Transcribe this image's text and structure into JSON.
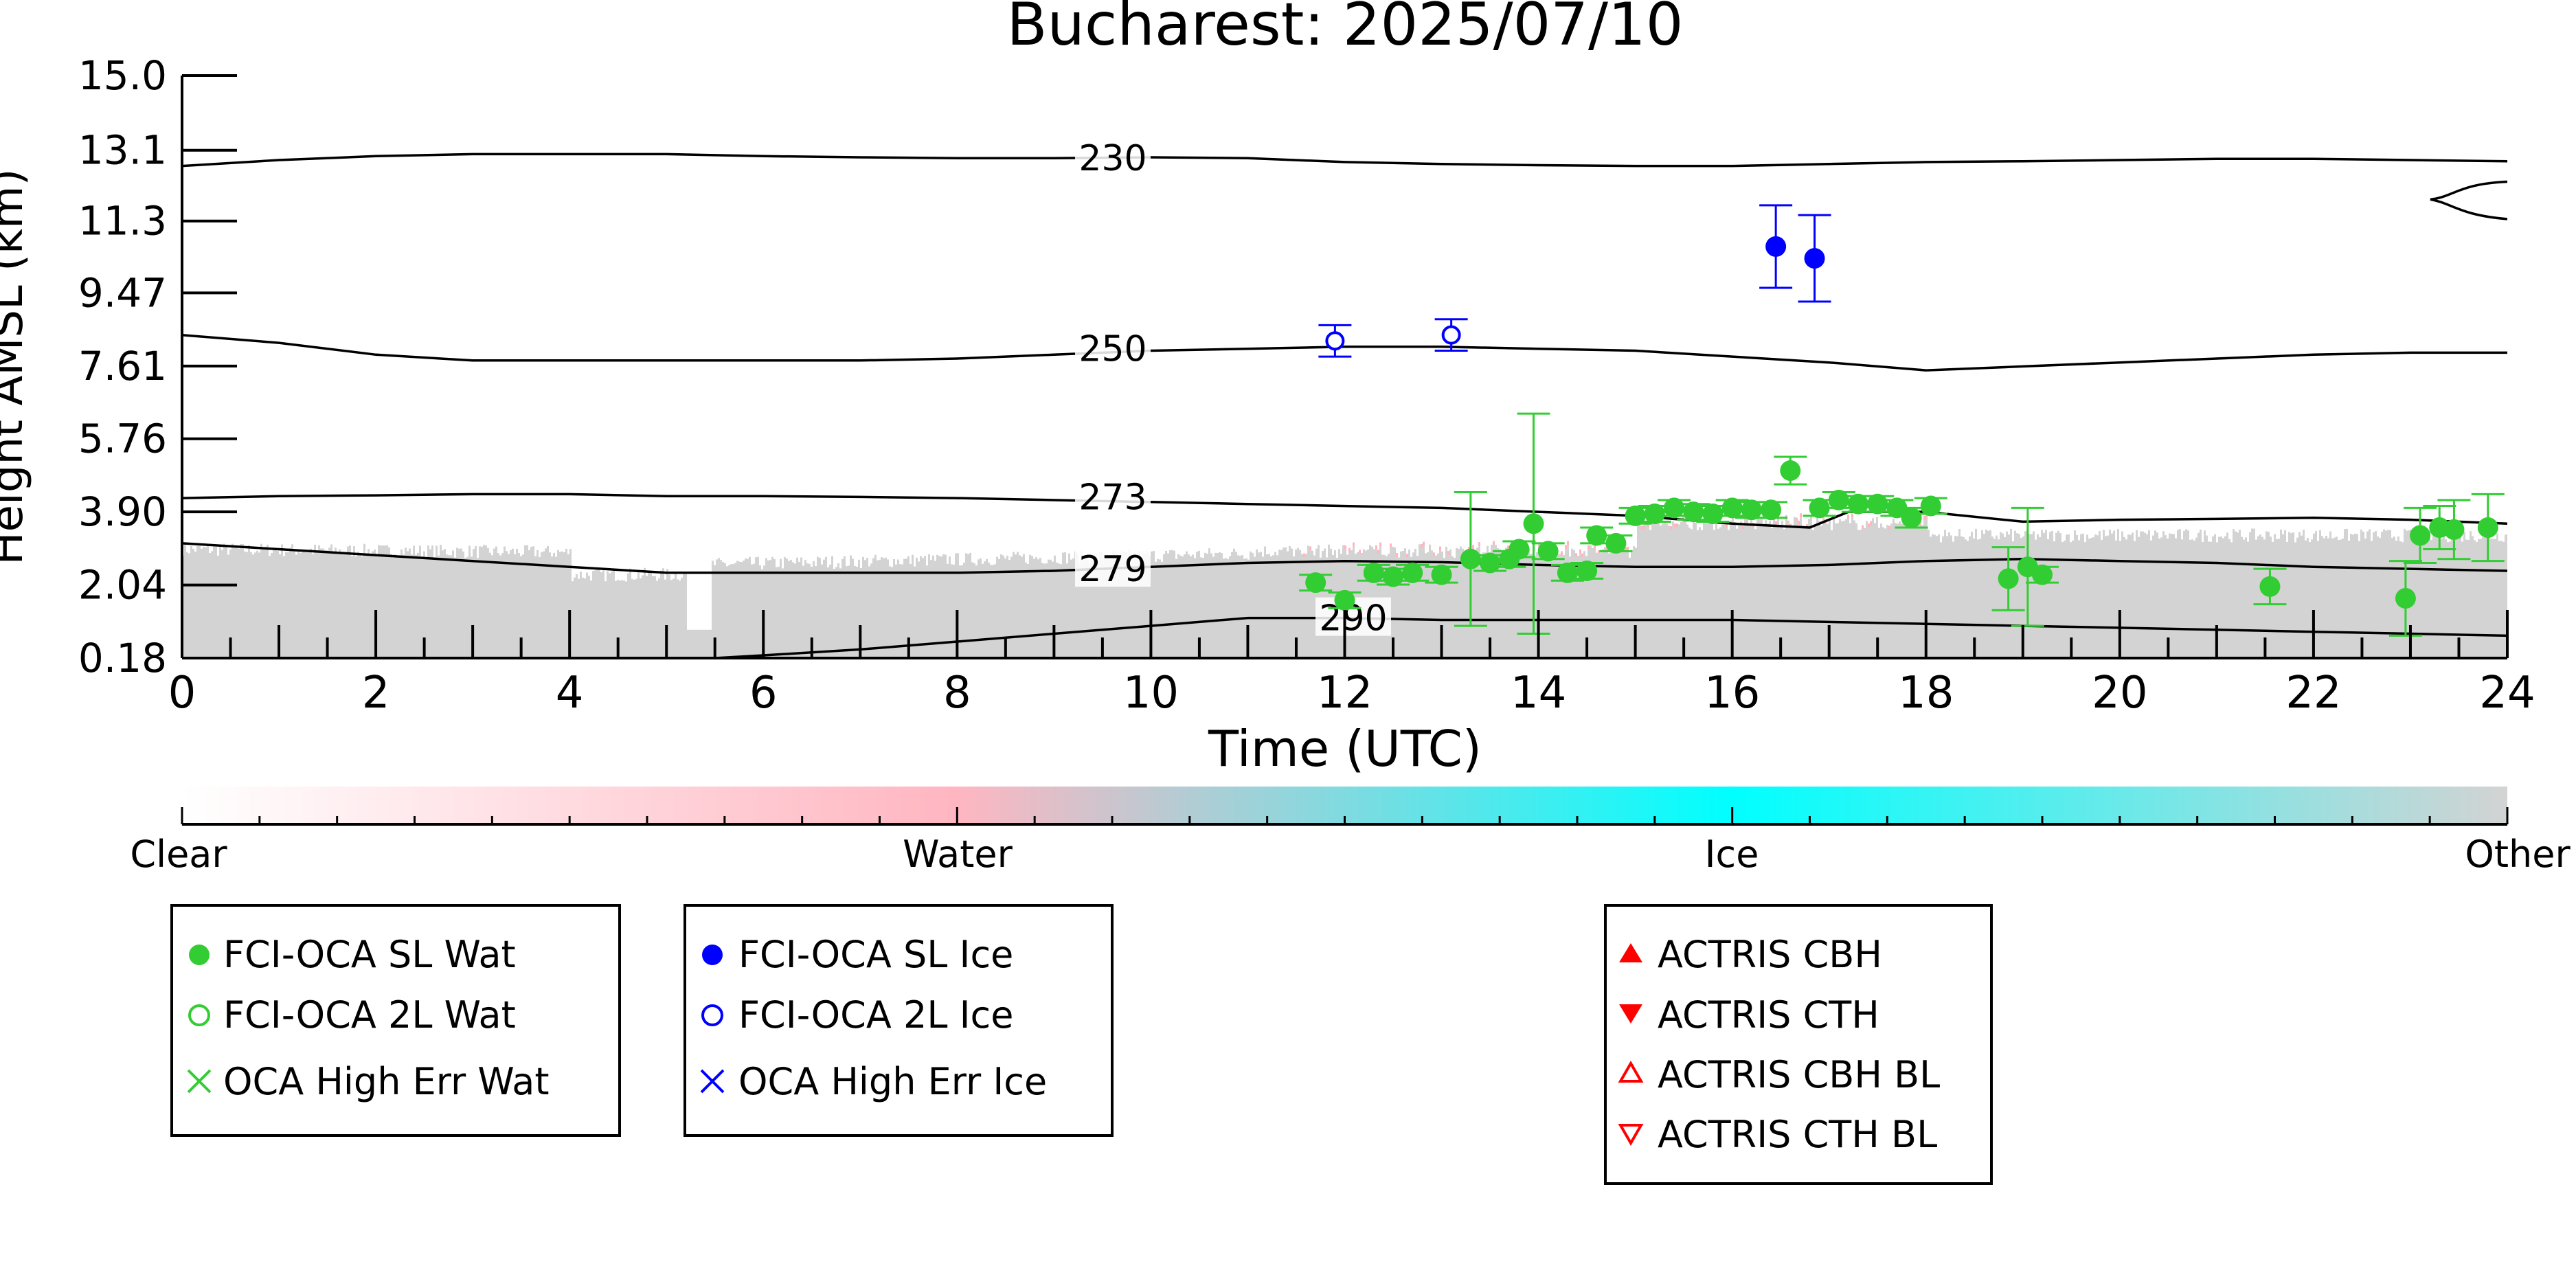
{
  "chart_data": {
    "type": "scatter",
    "title": "Bucharest: 2025/07/10",
    "xlabel": "Time (UTC)",
    "ylabel": "Height AMSL (km)",
    "xlim": [
      0,
      24
    ],
    "ylim": [
      0.18,
      15.0
    ],
    "x_ticks": [
      "0",
      "2",
      "4",
      "6",
      "8",
      "10",
      "12",
      "14",
      "16",
      "18",
      "20",
      "22",
      "24"
    ],
    "y_ticks": [
      {
        "value": 0.18,
        "label": "0.18"
      },
      {
        "value": 2.04,
        "label": "2.04"
      },
      {
        "value": 3.9,
        "label": "3.90"
      },
      {
        "value": 5.76,
        "label": "5.76"
      },
      {
        "value": 7.61,
        "label": "7.61"
      },
      {
        "value": 9.47,
        "label": "9.47"
      },
      {
        "value": 11.3,
        "label": "11.3"
      },
      {
        "value": 13.1,
        "label": "13.1"
      },
      {
        "value": 15.0,
        "label": "15.0"
      }
    ],
    "grid": false,
    "colorbar": {
      "labels": [
        "Clear",
        "Water",
        "Ice",
        "Other"
      ],
      "colors": [
        "#ffffff",
        "#ffb6c1",
        "#00ffff",
        "#d3d3d3"
      ]
    },
    "contour_labels": [
      "230",
      "250",
      "273",
      "279",
      "290"
    ],
    "isotherms": [
      {
        "label": "230",
        "x": [
          0,
          1,
          2,
          3,
          4,
          5,
          6,
          7,
          8,
          9,
          10,
          11,
          12,
          13,
          14,
          15,
          16,
          17,
          18,
          19,
          20,
          21,
          22,
          23,
          24
        ],
        "y": [
          12.7,
          12.85,
          12.95,
          13.0,
          13.0,
          13.0,
          12.95,
          12.92,
          12.9,
          12.9,
          12.92,
          12.9,
          12.8,
          12.75,
          12.72,
          12.7,
          12.7,
          12.75,
          12.8,
          12.82,
          12.85,
          12.88,
          12.88,
          12.85,
          12.82
        ]
      },
      {
        "label": "250",
        "x": [
          0,
          1,
          2,
          3,
          4,
          5,
          6,
          7,
          8,
          9,
          10,
          11,
          12,
          13,
          14,
          15,
          16,
          17,
          18,
          19,
          20,
          21,
          22,
          23,
          24
        ],
        "y": [
          8.4,
          8.2,
          7.9,
          7.75,
          7.75,
          7.75,
          7.75,
          7.75,
          7.8,
          7.9,
          8.0,
          8.05,
          8.1,
          8.1,
          8.05,
          8.0,
          7.85,
          7.7,
          7.5,
          7.6,
          7.7,
          7.8,
          7.9,
          7.95,
          7.95
        ]
      },
      {
        "label": "273",
        "x": [
          0,
          1,
          2,
          3,
          4,
          5,
          6,
          7,
          8,
          9,
          10,
          11,
          12,
          13,
          14,
          15,
          16,
          16.8,
          17.2,
          18,
          19,
          20,
          21,
          22,
          23,
          24
        ],
        "y": [
          4.25,
          4.3,
          4.32,
          4.35,
          4.35,
          4.3,
          4.3,
          4.28,
          4.25,
          4.2,
          4.15,
          4.1,
          4.05,
          4.0,
          3.9,
          3.8,
          3.6,
          3.5,
          3.9,
          3.9,
          3.65,
          3.7,
          3.72,
          3.75,
          3.7,
          3.6
        ]
      },
      {
        "label": "279",
        "x": [
          0,
          1,
          2,
          3,
          4,
          5,
          6,
          7,
          8,
          9,
          10,
          11,
          12,
          13,
          14,
          15,
          16,
          17,
          18,
          19,
          20,
          21,
          22,
          23,
          24
        ],
        "y": [
          3.1,
          2.95,
          2.8,
          2.65,
          2.5,
          2.35,
          2.35,
          2.35,
          2.35,
          2.4,
          2.5,
          2.6,
          2.65,
          2.62,
          2.55,
          2.5,
          2.5,
          2.55,
          2.65,
          2.7,
          2.65,
          2.6,
          2.5,
          2.45,
          2.4
        ]
      },
      {
        "label": "290",
        "x": [
          5.5,
          6,
          7,
          8,
          9,
          10,
          11,
          12,
          13,
          14,
          15,
          16,
          17,
          18,
          19,
          20,
          21,
          22,
          23,
          24
        ],
        "y": [
          0.18,
          0.25,
          0.4,
          0.6,
          0.8,
          1.0,
          1.2,
          1.2,
          1.15,
          1.15,
          1.15,
          1.15,
          1.1,
          1.05,
          1.0,
          0.95,
          0.9,
          0.85,
          0.8,
          0.75
        ]
      }
    ],
    "series": [
      {
        "name": "FCI-OCA SL Wat",
        "color": "#32cd32",
        "marker": "filled-circle",
        "points": [
          {
            "x": 11.7,
            "y": 2.1,
            "err": 0.2
          },
          {
            "x": 12.0,
            "y": 1.65,
            "err": 0.2
          },
          {
            "x": 12.3,
            "y": 2.35,
            "err": 0.2
          },
          {
            "x": 12.5,
            "y": 2.25,
            "err": 0.2
          },
          {
            "x": 12.7,
            "y": 2.35,
            "err": 0.2
          },
          {
            "x": 13.0,
            "y": 2.3,
            "err": 0.2
          },
          {
            "x": 13.3,
            "y": 2.7,
            "err": 1.7
          },
          {
            "x": 13.5,
            "y": 2.6,
            "err": 0.2
          },
          {
            "x": 13.7,
            "y": 2.7,
            "err": 0.2
          },
          {
            "x": 13.8,
            "y": 2.95,
            "err": 0.2
          },
          {
            "x": 13.95,
            "y": 3.6,
            "err": 2.8
          },
          {
            "x": 14.1,
            "y": 2.9,
            "err": 0.2
          },
          {
            "x": 14.3,
            "y": 2.35,
            "err": 0.2
          },
          {
            "x": 14.5,
            "y": 2.4,
            "err": 0.2
          },
          {
            "x": 14.6,
            "y": 3.3,
            "err": 0.2
          },
          {
            "x": 14.8,
            "y": 3.1,
            "err": 0.2
          },
          {
            "x": 15.0,
            "y": 3.8,
            "err": 0.2
          },
          {
            "x": 15.2,
            "y": 3.85,
            "err": 0.2
          },
          {
            "x": 15.4,
            "y": 4.0,
            "err": 0.2
          },
          {
            "x": 15.6,
            "y": 3.9,
            "err": 0.2
          },
          {
            "x": 15.8,
            "y": 3.85,
            "err": 0.2
          },
          {
            "x": 16.0,
            "y": 4.0,
            "err": 0.2
          },
          {
            "x": 16.2,
            "y": 3.95,
            "err": 0.2
          },
          {
            "x": 16.4,
            "y": 3.95,
            "err": 0.2
          },
          {
            "x": 16.6,
            "y": 4.95,
            "err": 0.35
          },
          {
            "x": 16.9,
            "y": 4.0,
            "err": 0.2
          },
          {
            "x": 17.1,
            "y": 4.2,
            "err": 0.2
          },
          {
            "x": 17.3,
            "y": 4.1,
            "err": 0.2
          },
          {
            "x": 17.5,
            "y": 4.1,
            "err": 0.2
          },
          {
            "x": 17.7,
            "y": 4.0,
            "err": 0.2
          },
          {
            "x": 17.85,
            "y": 3.75,
            "err": 0.25
          },
          {
            "x": 18.05,
            "y": 4.05,
            "err": 0.2
          },
          {
            "x": 18.85,
            "y": 2.2,
            "err": 0.8
          },
          {
            "x": 19.05,
            "y": 2.5,
            "err": 1.5
          },
          {
            "x": 19.2,
            "y": 2.3,
            "err": 0.2
          },
          {
            "x": 21.55,
            "y": 2.0,
            "err": 0.45
          },
          {
            "x": 22.95,
            "y": 1.7,
            "err": 0.95
          },
          {
            "x": 23.1,
            "y": 3.3,
            "err": 0.7
          },
          {
            "x": 23.3,
            "y": 3.5,
            "err": 0.55
          },
          {
            "x": 23.45,
            "y": 3.45,
            "err": 0.75
          },
          {
            "x": 23.8,
            "y": 3.5,
            "err": 0.85
          }
        ]
      },
      {
        "name": "FCI-OCA 2L Wat",
        "color": "#32cd32",
        "marker": "open-circle",
        "points": []
      },
      {
        "name": "OCA High Err Wat",
        "color": "#32cd32",
        "marker": "x",
        "points": []
      },
      {
        "name": "FCI-OCA SL Ice",
        "color": "#0000ff",
        "marker": "filled-circle",
        "points": [
          {
            "x": 16.45,
            "y": 10.65,
            "err": 1.05
          },
          {
            "x": 16.85,
            "y": 10.35,
            "err": 1.1
          }
        ]
      },
      {
        "name": "FCI-OCA 2L Ice",
        "color": "#0000ff",
        "marker": "open-circle",
        "points": [
          {
            "x": 11.9,
            "y": 8.25,
            "err": 0.4
          },
          {
            "x": 13.1,
            "y": 8.4,
            "err": 0.4
          }
        ]
      },
      {
        "name": "OCA High Err Ice",
        "color": "#0000ff",
        "marker": "x",
        "points": []
      },
      {
        "name": "ACTRIS CBH",
        "color": "#ff0000",
        "marker": "triangle-up-filled",
        "points": []
      },
      {
        "name": "ACTRIS CTH",
        "color": "#ff0000",
        "marker": "triangle-down-filled",
        "points": []
      },
      {
        "name": "ACTRIS CBH BL",
        "color": "#ff0000",
        "marker": "triangle-up-open",
        "points": []
      },
      {
        "name": "ACTRIS CTH BL",
        "color": "#ff0000",
        "marker": "triangle-down-open",
        "points": []
      }
    ],
    "legends": [
      [
        "FCI-OCA SL Wat",
        "FCI-OCA 2L Wat",
        "OCA High Err Wat"
      ],
      [
        "FCI-OCA SL Ice",
        "FCI-OCA 2L Ice",
        "OCA High Err Ice"
      ],
      [
        "ACTRIS CBH",
        "ACTRIS CTH",
        "ACTRIS CBH BL",
        "ACTRIS CTH BL"
      ]
    ]
  }
}
